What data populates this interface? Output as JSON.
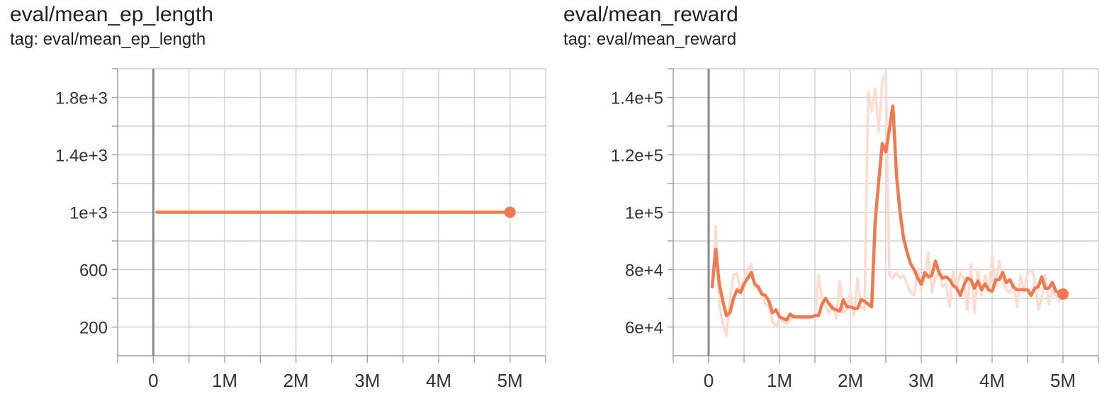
{
  "colors": {
    "series": "#f07a4f",
    "raw": "#fcdccf"
  },
  "panels": [
    {
      "title": "eval/mean_ep_length",
      "tag": "tag: eval/mean_ep_length"
    },
    {
      "title": "eval/mean_reward",
      "tag": "tag: eval/mean_reward"
    }
  ],
  "chart_data": [
    {
      "type": "line",
      "title": "eval/mean_ep_length",
      "xlim": [
        -500000,
        5500000
      ],
      "ylim": [
        0,
        2000
      ],
      "x_ticks": [
        0,
        1000000,
        2000000,
        3000000,
        4000000,
        5000000
      ],
      "x_tick_labels": [
        "0",
        "1M",
        "2M",
        "3M",
        "4M",
        "5M"
      ],
      "y_ticks": [
        200,
        600,
        1000,
        1400,
        1800
      ],
      "y_tick_labels": [
        "200",
        "600",
        "1e+3",
        "1.4e+3",
        "1.8e+3"
      ],
      "grid": true,
      "series": [
        {
          "smoothed": true,
          "x": [
            50000,
            5000000
          ],
          "y": [
            1000,
            1000
          ]
        }
      ]
    },
    {
      "type": "line",
      "title": "eval/mean_reward",
      "xlim": [
        -500000,
        5500000
      ],
      "ylim": [
        50000,
        150000
      ],
      "x_ticks": [
        0,
        1000000,
        2000000,
        3000000,
        4000000,
        5000000
      ],
      "x_tick_labels": [
        "0",
        "1M",
        "2M",
        "3M",
        "4M",
        "5M"
      ],
      "y_ticks": [
        60000,
        80000,
        100000,
        120000,
        140000
      ],
      "y_tick_labels": [
        "6e+4",
        "8e+4",
        "1e+5",
        "1.2e+5",
        "1.4e+5"
      ],
      "grid": true,
      "series": [
        {
          "smoothed": false,
          "x": [
            50000,
            100000,
            150000,
            200000,
            250000,
            300000,
            350000,
            400000,
            450000,
            500000,
            550000,
            600000,
            650000,
            700000,
            750000,
            800000,
            850000,
            900000,
            950000,
            1000000,
            1100000,
            1200000,
            1300000,
            1400000,
            1500000,
            1550000,
            1600000,
            1650000,
            1700000,
            1750000,
            1800000,
            1850000,
            1900000,
            1950000,
            2000000,
            2050000,
            2100000,
            2150000,
            2200000,
            2250000,
            2300000,
            2350000,
            2400000,
            2450000,
            2500000,
            2550000,
            2600000,
            2650000,
            2700000,
            2750000,
            2800000,
            2850000,
            2900000,
            2950000,
            3000000,
            3050000,
            3100000,
            3150000,
            3200000,
            3250000,
            3300000,
            3350000,
            3400000,
            3450000,
            3500000,
            3550000,
            3600000,
            3650000,
            3700000,
            3750000,
            3800000,
            3850000,
            3900000,
            3950000,
            4000000,
            4050000,
            4100000,
            4150000,
            4200000,
            4250000,
            4300000,
            4350000,
            4400000,
            4450000,
            4500000,
            4550000,
            4600000,
            4650000,
            4700000,
            4750000,
            4800000,
            4850000,
            4900000,
            4950000,
            5000000
          ],
          "y": [
            74000,
            95000,
            68000,
            61000,
            57000,
            70000,
            78000,
            79000,
            72000,
            77000,
            80000,
            82000,
            74000,
            73000,
            71000,
            68000,
            67000,
            62000,
            60000,
            63000,
            61000,
            64000,
            63000,
            63000,
            64000,
            78000,
            70000,
            67000,
            65000,
            68000,
            63000,
            76000,
            65000,
            66000,
            72000,
            64000,
            77000,
            67000,
            66000,
            142000,
            135000,
            143000,
            128000,
            146000,
            148000,
            78000,
            77000,
            79000,
            77000,
            78000,
            75000,
            72000,
            71000,
            80000,
            73000,
            77000,
            86000,
            72000,
            77000,
            79000,
            74000,
            75000,
            67000,
            80000,
            73000,
            79000,
            77000,
            66000,
            82000,
            65000,
            80000,
            71000,
            78000,
            72000,
            85000,
            74000,
            83000,
            76000,
            73000,
            72000,
            75000,
            67000,
            78000,
            72000,
            79000,
            80000,
            77000,
            66000,
            70000,
            78000,
            68000,
            73000,
            71000,
            69000,
            72000
          ],
          "y_note": ""
        },
        {
          "smoothed": true,
          "x": [
            50000,
            100000,
            150000,
            200000,
            250000,
            300000,
            350000,
            400000,
            450000,
            500000,
            550000,
            600000,
            650000,
            700000,
            750000,
            800000,
            850000,
            900000,
            950000,
            1000000,
            1050000,
            1100000,
            1150000,
            1200000,
            1250000,
            1300000,
            1350000,
            1400000,
            1450000,
            1500000,
            1550000,
            1600000,
            1650000,
            1700000,
            1750000,
            1800000,
            1850000,
            1900000,
            1950000,
            2000000,
            2050000,
            2100000,
            2150000,
            2200000,
            2250000,
            2300000,
            2350000,
            2400000,
            2450000,
            2500000,
            2550000,
            2600000,
            2650000,
            2700000,
            2750000,
            2800000,
            2850000,
            2900000,
            2950000,
            3000000,
            3050000,
            3100000,
            3150000,
            3200000,
            3250000,
            3300000,
            3350000,
            3400000,
            3450000,
            3500000,
            3550000,
            3600000,
            3650000,
            3700000,
            3750000,
            3800000,
            3850000,
            3900000,
            3950000,
            4000000,
            4050000,
            4100000,
            4150000,
            4200000,
            4250000,
            4300000,
            4350000,
            4400000,
            4450000,
            4500000,
            4550000,
            4600000,
            4650000,
            4700000,
            4750000,
            4800000,
            4850000,
            4900000,
            4950000,
            5000000
          ],
          "y": [
            74000,
            87000,
            75000,
            69000,
            64000,
            65000,
            70000,
            73000,
            72000,
            75000,
            77000,
            79000,
            75000,
            74000,
            71500,
            71000,
            69000,
            65000,
            66000,
            63500,
            63000,
            62500,
            64500,
            63500,
            63500,
            63500,
            63500,
            63500,
            63500,
            64000,
            64000,
            68000,
            70000,
            68000,
            66500,
            66000,
            65500,
            69500,
            67000,
            67000,
            66500,
            66500,
            69500,
            69000,
            68000,
            67000,
            97000,
            111000,
            124000,
            121000,
            129000,
            137000,
            113000,
            100000,
            91000,
            86000,
            82000,
            80000,
            77000,
            75000,
            79000,
            77500,
            78000,
            83000,
            79000,
            77000,
            77500,
            76500,
            74500,
            73500,
            71000,
            74500,
            77000,
            76500,
            73500,
            76000,
            73000,
            75000,
            73000,
            72500,
            76500,
            76500,
            79000,
            75500,
            76500,
            74000,
            73000,
            73000,
            73000,
            73000,
            71000,
            73500,
            74000,
            77500,
            73500,
            73500,
            75500,
            72500,
            72000,
            71500
          ]
        }
      ]
    }
  ]
}
